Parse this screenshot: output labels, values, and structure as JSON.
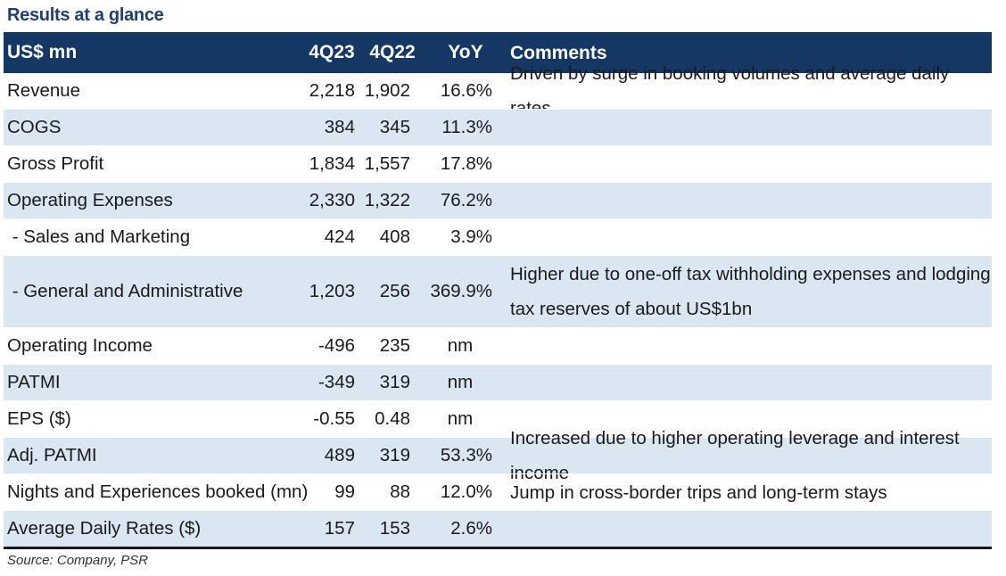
{
  "title": "Results at a glance",
  "header": {
    "label": "US$ mn",
    "q23": "4Q23",
    "q22": "4Q22",
    "yoy": "YoY",
    "comments": "Comments"
  },
  "rows": [
    {
      "label": "Revenue",
      "q23": "2,218",
      "q22": "1,902",
      "yoy": "16.6%",
      "comment": "Driven by surge in booking volumes and average daily rates"
    },
    {
      "label": "COGS",
      "q23": "384",
      "q22": "345",
      "yoy": "11.3%",
      "comment": ""
    },
    {
      "label": "Gross Profit",
      "q23": "1,834",
      "q22": "1,557",
      "yoy": "17.8%",
      "comment": ""
    },
    {
      "label": "Operating Expenses",
      "q23": "2,330",
      "q22": "1,322",
      "yoy": "76.2%",
      "comment": ""
    },
    {
      "label": " - Sales and Marketing",
      "q23": "424",
      "q22": "408",
      "yoy": "3.9%",
      "comment": ""
    },
    {
      "label": " - General and Administrative",
      "q23": "1,203",
      "q22": "256",
      "yoy": "369.9%",
      "comment": "Higher due to one-off tax withholding expenses and lodging tax reserves of about US$1bn"
    },
    {
      "label": "Operating Income",
      "q23": "-496",
      "q22": "235",
      "yoy": "nm",
      "comment": ""
    },
    {
      "label": "PATMI",
      "q23": "-349",
      "q22": "319",
      "yoy": "nm",
      "comment": ""
    },
    {
      "label": "EPS ($)",
      "q23": "-0.55",
      "q22": "0.48",
      "yoy": "nm",
      "comment": ""
    },
    {
      "label": "Adj. PATMI",
      "q23": "489",
      "q22": "319",
      "yoy": "53.3%",
      "comment": "Increased due to higher operating leverage and interest income"
    },
    {
      "label": "Nights and Experiences booked (mn)",
      "q23": "99",
      "q22": "88",
      "yoy": "12.0%",
      "comment": "Jump in cross-border trips and long-term stays"
    },
    {
      "label": "Average Daily Rates ($)",
      "q23": "157",
      "q22": "153",
      "yoy": "2.6%",
      "comment": ""
    }
  ],
  "source": "Source: Company, PSR",
  "colors": {
    "header_bg": "#143763",
    "alt_row_bg": "#dbe6f3",
    "title": "#1f3e73"
  }
}
